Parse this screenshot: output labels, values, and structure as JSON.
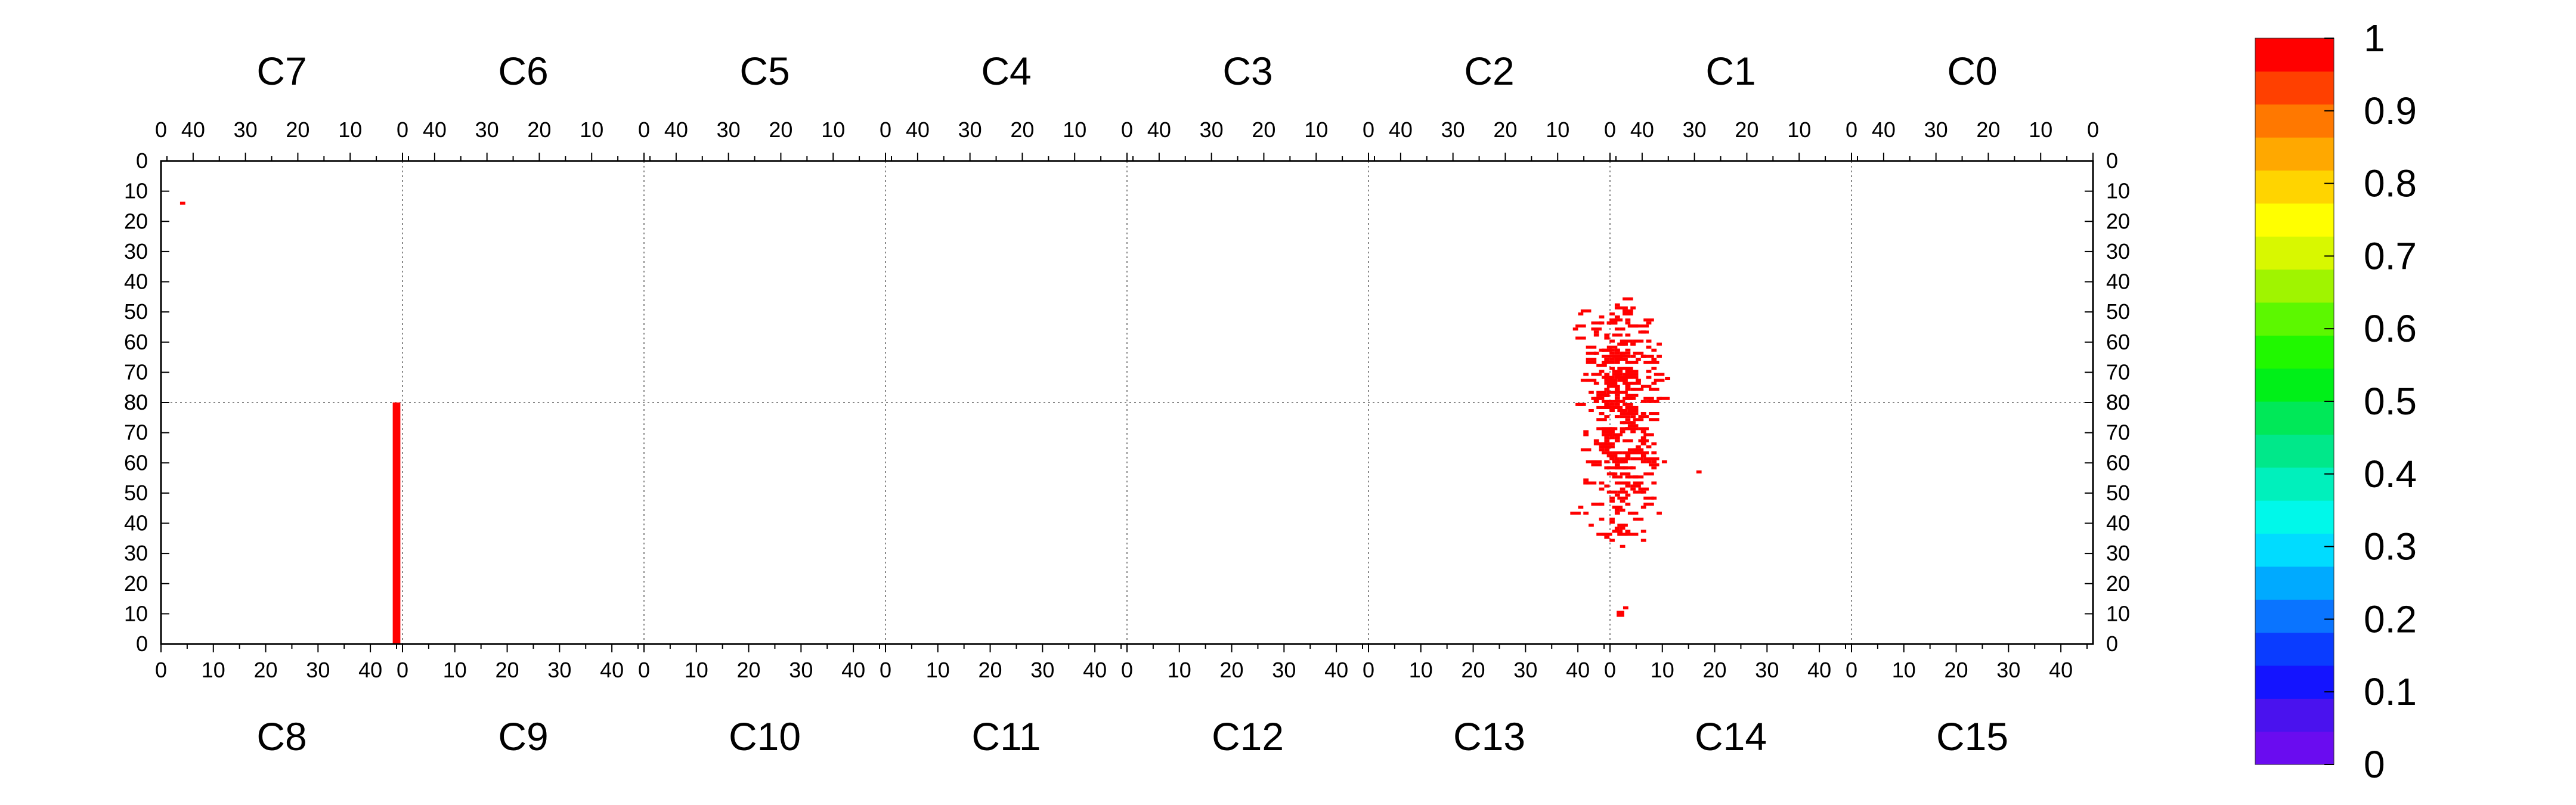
{
  "chart_data": {
    "type": "heatmap",
    "title": "",
    "xlabel": "",
    "ylabel": "",
    "top_chip_labels": [
      "C7",
      "C6",
      "C5",
      "C4",
      "C3",
      "C2",
      "C1",
      "C0"
    ],
    "bottom_chip_labels": [
      "C8",
      "C9",
      "C10",
      "C11",
      "C12",
      "C13",
      "C14",
      "C15"
    ],
    "top_x_tick_labels": [
      "40",
      "30",
      "20",
      "10",
      "0"
    ],
    "bottom_x_tick_labels": [
      "0",
      "10",
      "20",
      "30",
      "40"
    ],
    "upper_y_tick_labels": [
      "0",
      "10",
      "20",
      "30",
      "40",
      "50",
      "60",
      "70",
      "80"
    ],
    "lower_y_tick_labels": [
      "80",
      "70",
      "60",
      "50",
      "40",
      "30",
      "20",
      "10",
      "0"
    ],
    "chip_columns": 44,
    "chip_rows": 80,
    "colorbar": {
      "range": [
        0,
        1
      ],
      "tick_labels": [
        "0",
        "0.1",
        "0.2",
        "0.3",
        "0.4",
        "0.5",
        "0.6",
        "0.7",
        "0.8",
        "0.9",
        "1"
      ],
      "colors": [
        "#6a0cf0",
        "#4a12ee",
        "#1414ff",
        "#0a3cff",
        "#0a74ff",
        "#00aaff",
        "#00dcff",
        "#00f8ea",
        "#00f0bc",
        "#00e88a",
        "#00e858",
        "#00f018",
        "#20f800",
        "#5cf800",
        "#a0f400",
        "#d8f800",
        "#ffff00",
        "#ffd400",
        "#ffa800",
        "#ff7800",
        "#ff4000",
        "#ff0000"
      ]
    },
    "grid": true,
    "hits": [
      {
        "chip": "C7",
        "col": 42,
        "row": 14,
        "value": 1
      },
      {
        "chip": "C8",
        "col": 45,
        "row_from": 0,
        "row_to": 80,
        "value": 1
      },
      {
        "chip": "C14",
        "col": 2,
        "row_from": 9,
        "row_to": 11,
        "value": 1
      },
      {
        "chip": "C14",
        "col": 3,
        "row": 12,
        "value": 1
      }
    ],
    "clusters": [
      {
        "chips": [
          "C1",
          "C2",
          "C13",
          "C14"
        ],
        "boundary_col_range": [
          -10,
          12
        ],
        "y_range_top": [
          44,
          80
        ],
        "y_range_bottom": [
          32,
          80
        ],
        "value": 1,
        "approx_points": 420
      }
    ]
  }
}
